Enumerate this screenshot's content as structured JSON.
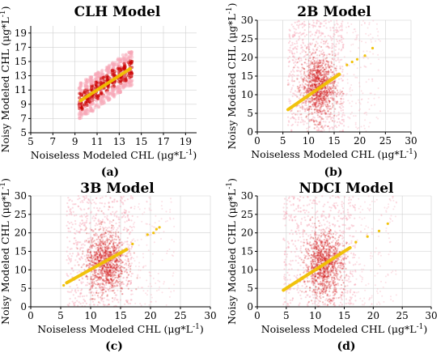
{
  "chart_data": [
    {
      "type": "scatter",
      "title": "CLH Model",
      "panel_label": "(a)",
      "xlabel": "Noiseless Modeled CHL",
      "ylabel": "Noisy Modeled CHL",
      "unit": "(μg*L",
      "unit_exp": "-1",
      "unit_end": ")",
      "xlim": [
        5,
        20
      ],
      "ylim": [
        5,
        20
      ],
      "xticks": [
        5,
        7,
        9,
        11,
        13,
        15,
        17,
        19
      ],
      "yticks": [
        5,
        7,
        9,
        11,
        13,
        15,
        17,
        19
      ],
      "grid": true,
      "x_columns": [
        9.5,
        10,
        10.5,
        11,
        11.5,
        12,
        12.5,
        13,
        13.5,
        14
      ],
      "noise_spread": 2.5,
      "fit_line": {
        "x": [
          9.5,
          14
        ],
        "y": [
          9.5,
          14
        ]
      },
      "colors": {
        "points_dense": "#cc0000",
        "points_light": "#f7a8b8",
        "fit_line": "#f0c000"
      }
    },
    {
      "type": "scatter",
      "title": "2B Model",
      "panel_label": "(b)",
      "xlabel": "Noiseless Modeled CHL",
      "ylabel": "Noisy Modeled CHL",
      "unit": "(μg*L",
      "unit_exp": "-1",
      "unit_end": ")",
      "xlim": [
        0,
        30
      ],
      "ylim": [
        0,
        30
      ],
      "xticks": [
        0,
        5,
        10,
        15,
        20,
        25,
        30
      ],
      "yticks": [
        0,
        5,
        10,
        15,
        20,
        25,
        30
      ],
      "grid": true,
      "cloud_center": [
        12,
        12
      ],
      "cloud_range_x": [
        6,
        17
      ],
      "fit_line": {
        "x": [
          6,
          16
        ],
        "y": [
          6,
          15.5
        ]
      },
      "outliers": [
        [
          17.5,
          18
        ],
        [
          18.5,
          18.8
        ],
        [
          19.5,
          19.5
        ],
        [
          21,
          20.5
        ],
        [
          22.5,
          22.5
        ]
      ],
      "colors": {
        "points_dense": "#cc0000",
        "points_light": "#f7a8b8",
        "fit_line": "#f0c000"
      }
    },
    {
      "type": "scatter",
      "title": "3B Model",
      "panel_label": "(c)",
      "xlabel": "Noiseless Modeled CHL",
      "ylabel": "Noisy Modeled CHL",
      "unit": "(μg*L",
      "unit_exp": "-1",
      "unit_end": ")",
      "xlim": [
        0,
        30
      ],
      "ylim": [
        0,
        30
      ],
      "xticks": [
        0,
        5,
        10,
        15,
        20,
        25,
        30
      ],
      "yticks": [
        0,
        5,
        10,
        15,
        20,
        25,
        30
      ],
      "grid": true,
      "cloud_center": [
        12.5,
        12
      ],
      "cloud_range_x": [
        6,
        17
      ],
      "fit_line": {
        "x": [
          6,
          16
        ],
        "y": [
          6.5,
          15.5
        ]
      },
      "outliers": [
        [
          5.5,
          5.8
        ],
        [
          17,
          17
        ],
        [
          19.5,
          19.5
        ],
        [
          20.5,
          20
        ],
        [
          21,
          21
        ],
        [
          21.5,
          21.5
        ]
      ],
      "colors": {
        "points_dense": "#cc0000",
        "points_light": "#f7a8b8",
        "fit_line": "#f0c000"
      }
    },
    {
      "type": "scatter",
      "title": "NDCI Model",
      "panel_label": "(d)",
      "xlabel": "Noiseless Modeled CHL",
      "ylabel": "Noisy Modeled CHL",
      "unit": "(μg*L",
      "unit_exp": "-1",
      "unit_end": ")",
      "xlim": [
        0,
        30
      ],
      "ylim": [
        0,
        30
      ],
      "xticks": [
        0,
        5,
        10,
        15,
        20,
        25,
        30
      ],
      "yticks": [
        0,
        5,
        10,
        15,
        20,
        25,
        30
      ],
      "grid": true,
      "cloud_center": [
        11.5,
        11.5
      ],
      "cloud_range_x": [
        4.5,
        17
      ],
      "fit_line": {
        "x": [
          4.5,
          16
        ],
        "y": [
          4.5,
          16
        ]
      },
      "outliers": [
        [
          17,
          17.5
        ],
        [
          19,
          19
        ],
        [
          21,
          20.5
        ],
        [
          22.5,
          22.5
        ]
      ],
      "colors": {
        "points_dense": "#cc0000",
        "points_light": "#f7a8b8",
        "fit_line": "#f0c000"
      }
    }
  ]
}
